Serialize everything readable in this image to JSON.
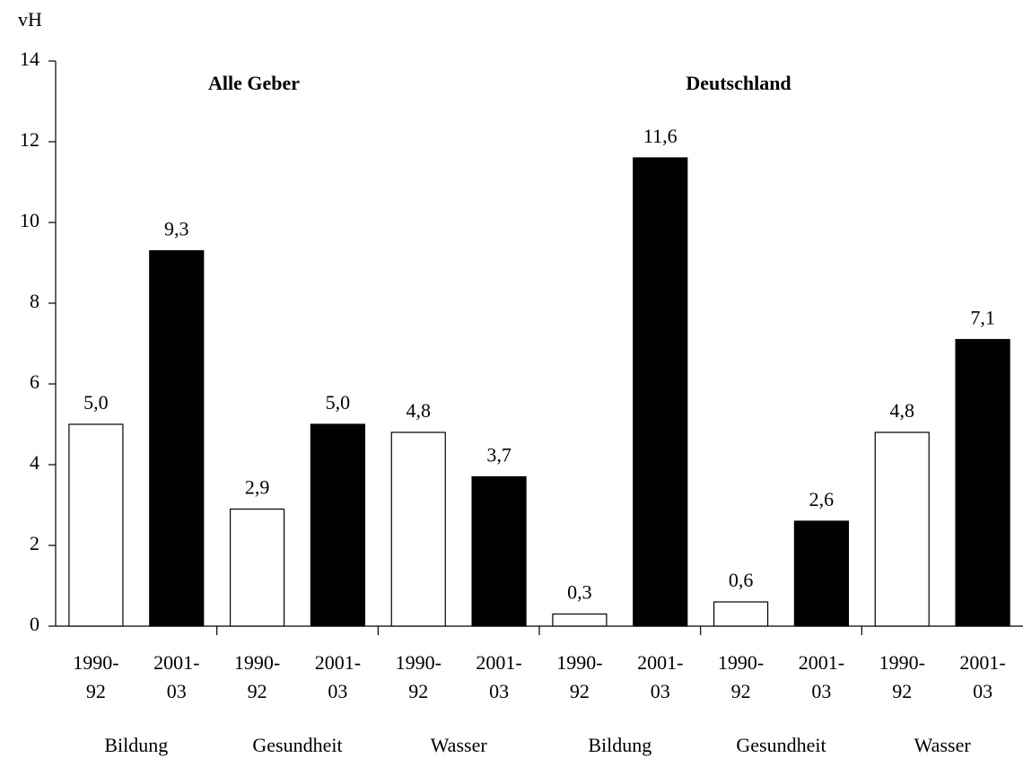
{
  "chart_data": {
    "type": "bar",
    "y_label": "vH",
    "annotations": [
      "Alle Geber",
      "Deutschland"
    ],
    "categories": [
      [
        "1990-",
        "92"
      ],
      [
        "2001-",
        "03"
      ],
      [
        "1990-",
        "92"
      ],
      [
        "2001-",
        "03"
      ],
      [
        "1990-",
        "92"
      ],
      [
        "2001-",
        "03"
      ],
      [
        "1990-",
        "92"
      ],
      [
        "2001-",
        "03"
      ],
      [
        "1990-",
        "92"
      ],
      [
        "2001-",
        "03"
      ],
      [
        "1990-",
        "92"
      ],
      [
        "2001-",
        "03"
      ]
    ],
    "groups": [
      "Bildung",
      "Gesundheit",
      "Wasser",
      "Bildung",
      "Gesundheit",
      "Wasser"
    ],
    "values": [
      5.0,
      9.3,
      2.9,
      5.0,
      4.8,
      3.7,
      0.3,
      11.6,
      0.6,
      2.6,
      4.8,
      7.1
    ],
    "value_labels": [
      "5,0",
      "9,3",
      "2,9",
      "5,0",
      "4,8",
      "3,7",
      "0,3",
      "11,6",
      "0,6",
      "2,6",
      "4,8",
      "7,1"
    ],
    "colors": [
      "#ffffff",
      "#000000",
      "#ffffff",
      "#000000",
      "#ffffff",
      "#000000",
      "#ffffff",
      "#000000",
      "#ffffff",
      "#000000",
      "#ffffff",
      "#000000"
    ],
    "ylim": [
      0,
      14
    ],
    "yticks": [
      0,
      2,
      4,
      6,
      8,
      10,
      12,
      14
    ],
    "grid": false
  }
}
